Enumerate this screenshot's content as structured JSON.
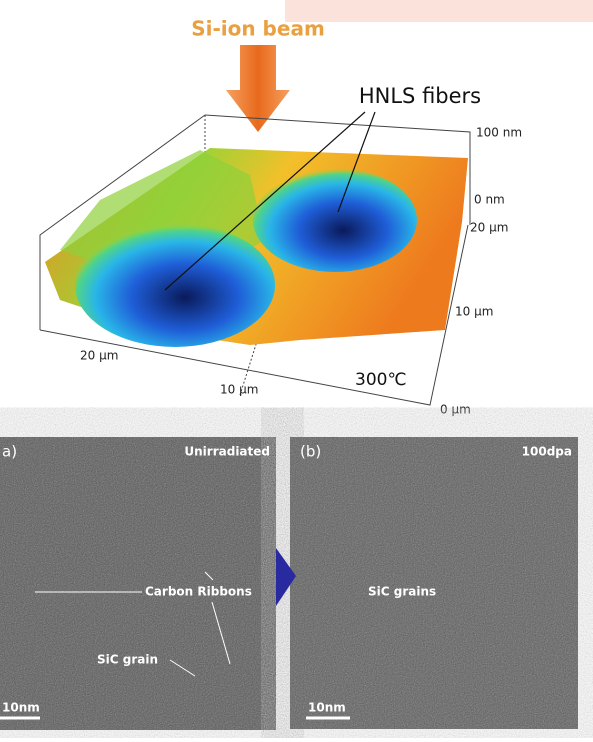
{
  "surface_plot": {
    "beam_label": "Si-ion beam",
    "fiber_label": "HNLS fibers",
    "temperature": "300℃",
    "z_ticks": [
      "100 nm",
      "0 nm"
    ],
    "y_ticks": [
      "20 μm",
      "10 μm",
      "0 μm"
    ],
    "x_ticks": [
      "20 μm",
      "10 μm"
    ]
  },
  "tem_panels": [
    {
      "label": "a)",
      "condition": "Unirradiated",
      "annotations": [
        "Carbon Ribbons",
        "SiC grain"
      ],
      "scale_bar": "10nm"
    },
    {
      "label": "(b)",
      "condition": "100dpa",
      "annotations": [
        "SiC grains"
      ],
      "scale_bar": "10nm"
    }
  ]
}
